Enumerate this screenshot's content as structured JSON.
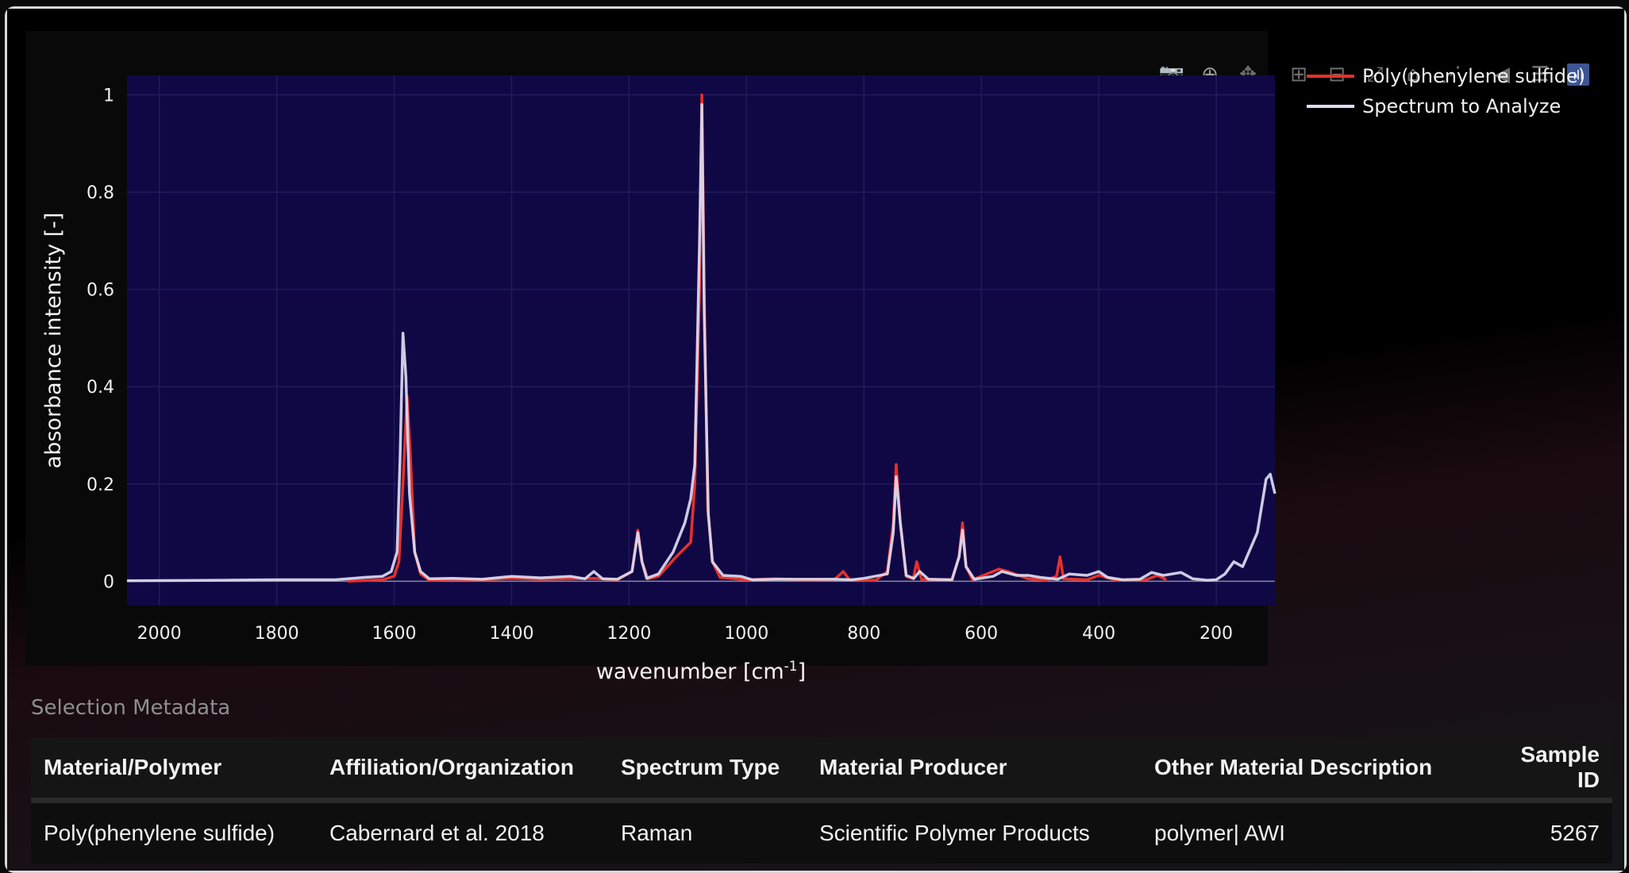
{
  "modebar": {
    "buttons": [
      {
        "name": "camera-icon",
        "glyph": "📷"
      },
      {
        "name": "zoom-icon",
        "glyph": "⊕"
      },
      {
        "name": "pan-icon",
        "glyph": "✥"
      },
      {
        "name": "zoom-in-icon",
        "glyph": "⊞"
      },
      {
        "name": "zoom-out-icon",
        "glyph": "⊟"
      },
      {
        "name": "autoscale-icon",
        "glyph": "⤢"
      },
      {
        "name": "home-icon",
        "glyph": "⌂"
      },
      {
        "name": "spike-lines-icon",
        "glyph": "⋰"
      },
      {
        "name": "hover-closest-icon",
        "glyph": "◀"
      },
      {
        "name": "hover-compare-icon",
        "glyph": "☰"
      },
      {
        "name": "plotly-logo-icon",
        "glyph": "ılı"
      }
    ]
  },
  "chart_data": {
    "type": "line",
    "xlabel": "wavenumber [cm",
    "xlabel_sup": "-1",
    "xlabel_end": "]",
    "ylabel": "absorbance intensity [-]",
    "xlim": [
      2055,
      100
    ],
    "ylim": [
      -0.05,
      1.04
    ],
    "x_ticks": [
      2000,
      1800,
      1600,
      1400,
      1200,
      1000,
      800,
      600,
      400,
      200
    ],
    "y_ticks": [
      0,
      0.2,
      0.4,
      0.6,
      0.8,
      1
    ],
    "y_tick_labels": [
      "0",
      "0.2",
      "0.4",
      "0.6",
      "0.8",
      "1"
    ],
    "plot_background": "#0f0845",
    "grid": true,
    "legend_position": "top-right",
    "series": [
      {
        "name": "Poly(phenylene sulfide)",
        "color": "#e8302a",
        "points": [
          [
            1680,
            0.0
          ],
          [
            1620,
            0.003
          ],
          [
            1600,
            0.01
          ],
          [
            1592,
            0.04
          ],
          [
            1585,
            0.2
          ],
          [
            1578,
            0.38
          ],
          [
            1572,
            0.25
          ],
          [
            1565,
            0.06
          ],
          [
            1555,
            0.015
          ],
          [
            1540,
            0.002
          ],
          [
            1500,
            0.004
          ],
          [
            1450,
            0.003
          ],
          [
            1400,
            0.006
          ],
          [
            1350,
            0.004
          ],
          [
            1300,
            0.005
          ],
          [
            1260,
            0.006
          ],
          [
            1220,
            0.003
          ],
          [
            1195,
            0.02
          ],
          [
            1185,
            0.105
          ],
          [
            1178,
            0.04
          ],
          [
            1168,
            0.005
          ],
          [
            1150,
            0.01
          ],
          [
            1120,
            0.05
          ],
          [
            1095,
            0.08
          ],
          [
            1088,
            0.2
          ],
          [
            1080,
            0.6
          ],
          [
            1076,
            1.0
          ],
          [
            1072,
            0.6
          ],
          [
            1066,
            0.15
          ],
          [
            1058,
            0.04
          ],
          [
            1045,
            0.008
          ],
          [
            1000,
            0.003
          ],
          [
            950,
            0.005
          ],
          [
            900,
            0.003
          ],
          [
            850,
            0.004
          ],
          [
            835,
            0.02
          ],
          [
            825,
            0.003
          ],
          [
            780,
            0.002
          ],
          [
            760,
            0.02
          ],
          [
            750,
            0.12
          ],
          [
            745,
            0.24
          ],
          [
            738,
            0.12
          ],
          [
            728,
            0.01
          ],
          [
            716,
            0.005
          ],
          [
            710,
            0.04
          ],
          [
            702,
            0.004
          ],
          [
            650,
            0.003
          ],
          [
            638,
            0.05
          ],
          [
            632,
            0.12
          ],
          [
            626,
            0.03
          ],
          [
            615,
            0.003
          ],
          [
            570,
            0.025
          ],
          [
            555,
            0.02
          ],
          [
            520,
            0.005
          ],
          [
            490,
            0.002
          ],
          [
            472,
            0.01
          ],
          [
            466,
            0.05
          ],
          [
            460,
            0.005
          ],
          [
            420,
            0.003
          ],
          [
            400,
            0.012
          ],
          [
            370,
            0.002
          ],
          [
            320,
            0.003
          ],
          [
            300,
            0.012
          ],
          [
            285,
            0.003
          ]
        ]
      },
      {
        "name": "Spectrum to Analyze",
        "color": "#dcdcf0",
        "points": [
          [
            2055,
            0.001
          ],
          [
            1900,
            0.002
          ],
          [
            1800,
            0.003
          ],
          [
            1700,
            0.003
          ],
          [
            1650,
            0.008
          ],
          [
            1620,
            0.01
          ],
          [
            1605,
            0.02
          ],
          [
            1595,
            0.06
          ],
          [
            1590,
            0.25
          ],
          [
            1585,
            0.51
          ],
          [
            1580,
            0.42
          ],
          [
            1574,
            0.18
          ],
          [
            1565,
            0.06
          ],
          [
            1555,
            0.02
          ],
          [
            1540,
            0.005
          ],
          [
            1500,
            0.006
          ],
          [
            1450,
            0.004
          ],
          [
            1400,
            0.01
          ],
          [
            1350,
            0.007
          ],
          [
            1300,
            0.01
          ],
          [
            1275,
            0.005
          ],
          [
            1260,
            0.02
          ],
          [
            1245,
            0.005
          ],
          [
            1220,
            0.004
          ],
          [
            1195,
            0.02
          ],
          [
            1185,
            0.1
          ],
          [
            1178,
            0.04
          ],
          [
            1170,
            0.006
          ],
          [
            1150,
            0.015
          ],
          [
            1125,
            0.06
          ],
          [
            1105,
            0.12
          ],
          [
            1095,
            0.17
          ],
          [
            1088,
            0.24
          ],
          [
            1080,
            0.7
          ],
          [
            1076,
            0.98
          ],
          [
            1072,
            0.55
          ],
          [
            1065,
            0.14
          ],
          [
            1058,
            0.04
          ],
          [
            1040,
            0.012
          ],
          [
            1010,
            0.01
          ],
          [
            990,
            0.003
          ],
          [
            950,
            0.004
          ],
          [
            900,
            0.004
          ],
          [
            850,
            0.004
          ],
          [
            820,
            0.003
          ],
          [
            800,
            0.006
          ],
          [
            760,
            0.015
          ],
          [
            750,
            0.1
          ],
          [
            745,
            0.215
          ],
          [
            738,
            0.12
          ],
          [
            728,
            0.012
          ],
          [
            715,
            0.006
          ],
          [
            705,
            0.02
          ],
          [
            690,
            0.004
          ],
          [
            650,
            0.003
          ],
          [
            638,
            0.05
          ],
          [
            632,
            0.105
          ],
          [
            626,
            0.03
          ],
          [
            612,
            0.004
          ],
          [
            580,
            0.01
          ],
          [
            565,
            0.02
          ],
          [
            540,
            0.012
          ],
          [
            520,
            0.012
          ],
          [
            500,
            0.008
          ],
          [
            470,
            0.004
          ],
          [
            450,
            0.015
          ],
          [
            420,
            0.012
          ],
          [
            400,
            0.02
          ],
          [
            385,
            0.008
          ],
          [
            360,
            0.003
          ],
          [
            330,
            0.004
          ],
          [
            310,
            0.018
          ],
          [
            290,
            0.012
          ],
          [
            260,
            0.018
          ],
          [
            240,
            0.005
          ],
          [
            215,
            0.002
          ],
          [
            200,
            0.003
          ],
          [
            185,
            0.015
          ],
          [
            170,
            0.04
          ],
          [
            155,
            0.03
          ],
          [
            130,
            0.1
          ],
          [
            115,
            0.21
          ],
          [
            108,
            0.22
          ],
          [
            100,
            0.18
          ]
        ]
      }
    ]
  },
  "metadata": {
    "title": "Selection Metadata",
    "columns": [
      "Material/Polymer",
      "Affiliation/Organization",
      "Spectrum Type",
      "Material Producer",
      "Other Material Description",
      "Sample ID"
    ],
    "row": [
      "Poly(phenylene sulfide)",
      "Cabernard et al. 2018",
      "Raman",
      "Scientific Polymer Products",
      "polymer| AWI",
      "5267"
    ]
  }
}
